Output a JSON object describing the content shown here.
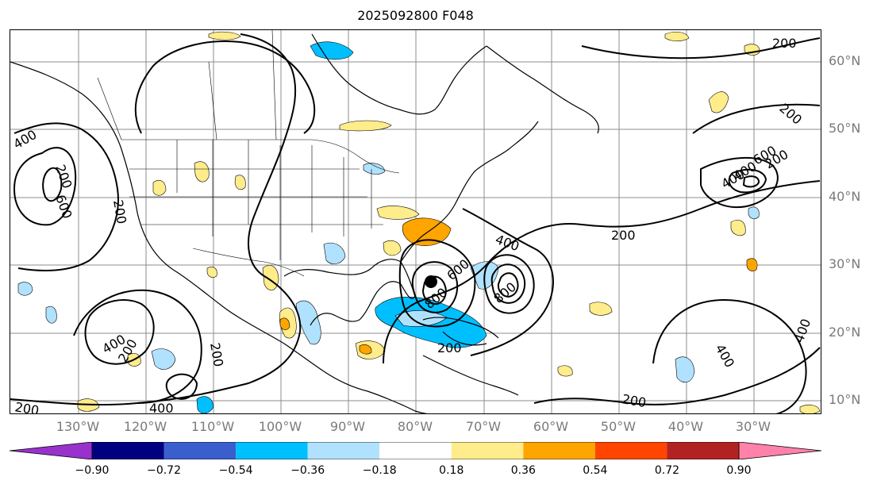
{
  "title": "2025092800 F048",
  "lat_labels": [
    "60°N",
    "50°N",
    "40°N",
    "30°N",
    "20°N",
    "10°N"
  ],
  "lon_labels": [
    "130°W",
    "120°W",
    "110°W",
    "100°W",
    "90°W",
    "80°W",
    "70°W",
    "60°W",
    "50°W",
    "40°W",
    "30°W"
  ],
  "contour_labels": [
    "200",
    "200",
    "400",
    "200",
    "600",
    "400",
    "200",
    "400",
    "600",
    "800",
    "400",
    "200",
    "400",
    "600",
    "800",
    "200",
    "400",
    "200",
    "200",
    "400",
    "200",
    "200",
    "400",
    "200"
  ],
  "colorbar": {
    "ticks": [
      "−0.90",
      "−0.72",
      "−0.54",
      "−0.36",
      "−0.18",
      "0.18",
      "0.36",
      "0.54",
      "0.72",
      "0.90"
    ],
    "under_color": "#9932cc",
    "over_color": "#ff82ab",
    "colors": [
      "#000080",
      "#3a5fcd",
      "#00bfff",
      "#b0e2ff",
      "#ffffff",
      "#ffec8b",
      "#ffa500",
      "#ff4500",
      "#b22222"
    ]
  },
  "shading_colors": {
    "blue_dark": "#00bfff",
    "blue_light": "#b0e2ff",
    "yellow": "#ffec8b",
    "orange": "#ffa500",
    "red": "#ff4500"
  }
}
